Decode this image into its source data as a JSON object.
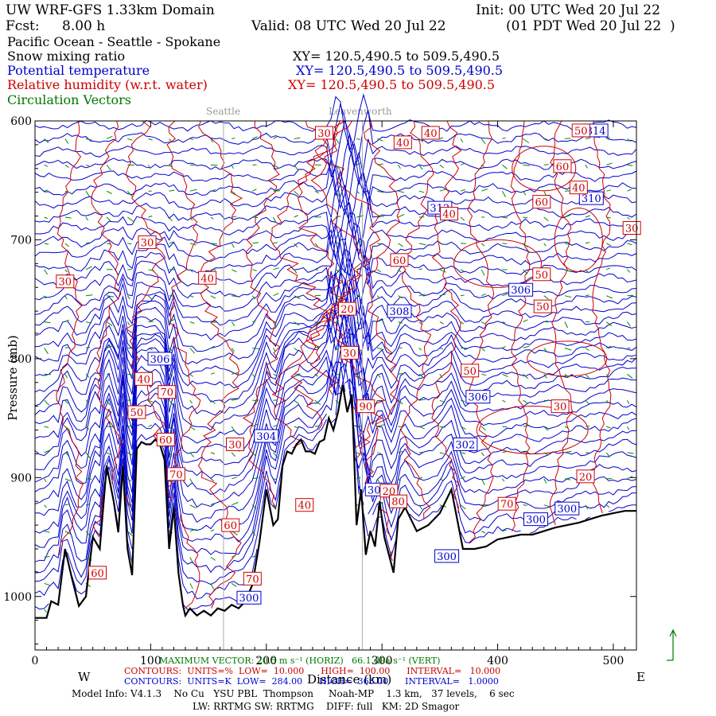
{
  "header": {
    "domain": "UW WRF-GFS 1.33km Domain",
    "init": "Init: 00 UTC Wed 20 Jul 22",
    "fcst_label": "Fcst:",
    "fcst_value": "8.00 h",
    "valid": "Valid: 08 UTC Wed 20 Jul 22",
    "valid_local": "(01 PDT Wed 20 Jul 22  )",
    "region": "Pacific Ocean - Seattle - Spokane"
  },
  "fields": [
    {
      "name": "Snow mixing ratio",
      "xy": "XY= 120.5,490.5 to 509.5,490.5",
      "color": "#000000"
    },
    {
      "name": "Potential temperature",
      "xy": "XY= 120.5,490.5 to 509.5,490.5",
      "color": "#0000cc"
    },
    {
      "name": "Relative humidity (w.r.t. water)",
      "xy": "XY= 120.5,490.5 to 509.5,490.5",
      "color": "#cc0000"
    },
    {
      "name": "Circulation Vectors",
      "xy": "",
      "color": "#007700"
    }
  ],
  "chart_data": {
    "type": "line",
    "x_ticks": [
      0,
      100,
      200,
      300,
      400,
      500
    ],
    "xlim": [
      0,
      520
    ],
    "y_ticks": [
      600,
      700,
      800,
      900,
      1000
    ],
    "ylim": [
      600,
      1045
    ],
    "y_axis_inverted": true,
    "xlabel": "Distance (km)",
    "ylabel": "Pressure (mb)",
    "left_end": "W",
    "right_end": "E",
    "reference_lines": [
      {
        "label": "Seattle",
        "x": 163
      },
      {
        "label": "Leavenworth",
        "x": 283
      }
    ],
    "terrain": {
      "color": "#000000",
      "x": [
        0,
        10,
        14,
        20,
        26,
        32,
        38,
        44,
        50,
        56,
        62,
        68,
        72,
        76,
        80,
        84,
        88,
        92,
        96,
        100,
        104,
        108,
        112,
        116,
        120,
        124,
        128,
        130,
        134,
        140,
        146,
        152,
        158,
        164,
        170,
        176,
        182,
        188,
        194,
        200,
        206,
        210,
        214,
        218,
        222,
        226,
        230,
        234,
        238,
        242,
        246,
        250,
        254,
        258,
        262,
        266,
        270,
        274,
        278,
        282,
        286,
        290,
        294,
        298,
        302,
        306,
        310,
        314,
        320,
        330,
        340,
        350,
        360,
        370,
        380,
        390,
        400,
        410,
        420,
        430,
        440,
        450,
        460,
        470,
        480,
        490,
        500,
        510,
        520
      ],
      "y": [
        1018,
        1018,
        1004,
        1007,
        960,
        985,
        1008,
        1000,
        950,
        960,
        890,
        920,
        946,
        890,
        960,
        982,
        876,
        870,
        872,
        872,
        868,
        872,
        885,
        960,
        925,
        980,
        1008,
        1016,
        1010,
        1016,
        1012,
        1016,
        1010,
        1012,
        1007,
        1010,
        1004,
        990,
        955,
        910,
        940,
        935,
        890,
        878,
        880,
        872,
        868,
        878,
        878,
        880,
        870,
        868,
        850,
        860,
        845,
        822,
        845,
        830,
        940,
        910,
        965,
        945,
        958,
        920,
        950,
        965,
        980,
        935,
        925,
        945,
        940,
        930,
        910,
        960,
        960,
        958,
        952,
        950,
        948,
        948,
        945,
        942,
        940,
        938,
        935,
        932,
        930,
        928,
        928
      ]
    },
    "potential_temperature_contours": {
      "units": "K",
      "low": "284.00",
      "high": "363.00",
      "interval": "1.0000",
      "levels_labeled": [
        "314",
        "312",
        "310",
        "308",
        "306",
        "306",
        "306",
        "304",
        "302",
        "301",
        "300",
        "300",
        "300",
        "300"
      ]
    },
    "relative_humidity_contours": {
      "units": "%",
      "low": "10.000",
      "high": "100.00",
      "interval": "10.000",
      "levels_labeled": [
        "30",
        "40",
        "40",
        "50",
        "60",
        "60",
        "40",
        "40",
        "30",
        "30",
        "30",
        "60",
        "50",
        "50",
        "40",
        "20",
        "30",
        "50",
        "30",
        "70",
        "40",
        "50",
        "60",
        "30",
        "70",
        "40",
        "20",
        "70",
        "20",
        "60",
        "60",
        "70",
        "80",
        "90"
      ]
    }
  },
  "footer": {
    "max_vector": "MAXIMUM VECTOR: 20.5 m s⁻¹ (HORIZ)   66.1 dPa s⁻¹ (VERT)",
    "rh_line": "CONTOURS:  UNITS=%  LOW=  10.000      HIGH=  100.00      INTERVAL=   10.000",
    "theta_line": "CONTOURS:  UNITS=K  LOW=  284.00      HIGH=  363.00      INTERVAL=   1.0000",
    "model_info": "Model Info: V4.1.3    No Cu   YSU PBL  Thompson     Noah-MP    1.3 km,   37 levels,    6 sec",
    "model_info2": "LW: RRTMG SW: RRTMG    DIFF: full   KM: 2D Smagor"
  }
}
